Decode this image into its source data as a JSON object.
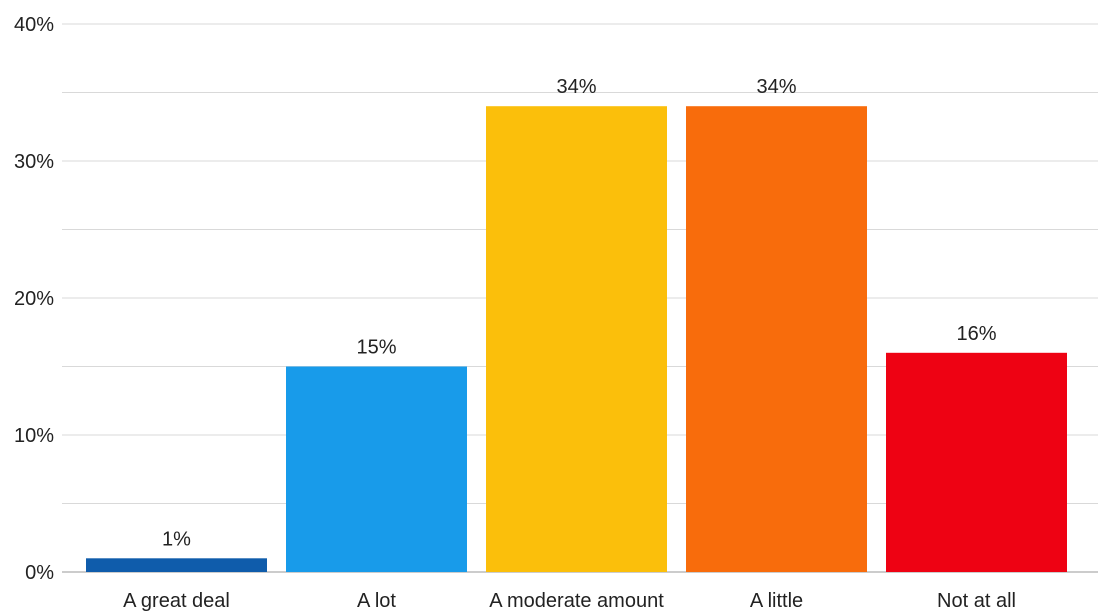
{
  "chart_data": {
    "type": "bar",
    "title": "",
    "xlabel": "",
    "ylabel": "",
    "categories": [
      "A great deal",
      "A lot",
      "A moderate amount",
      "A little",
      "Not at all"
    ],
    "values": [
      1,
      15,
      34,
      34,
      16
    ],
    "value_labels": [
      "1%",
      "15%",
      "34%",
      "34%",
      "16%"
    ],
    "colors": [
      "#0f5cab",
      "#189bea",
      "#fbbf0b",
      "#f86c0c",
      "#ee0213"
    ],
    "ylim": [
      0,
      40
    ],
    "y_ticks": [
      0,
      10,
      20,
      30,
      40
    ],
    "y_tick_labels": [
      "0%",
      "10%",
      "20%",
      "30%",
      "40%"
    ],
    "grid": true,
    "legend": "none"
  }
}
